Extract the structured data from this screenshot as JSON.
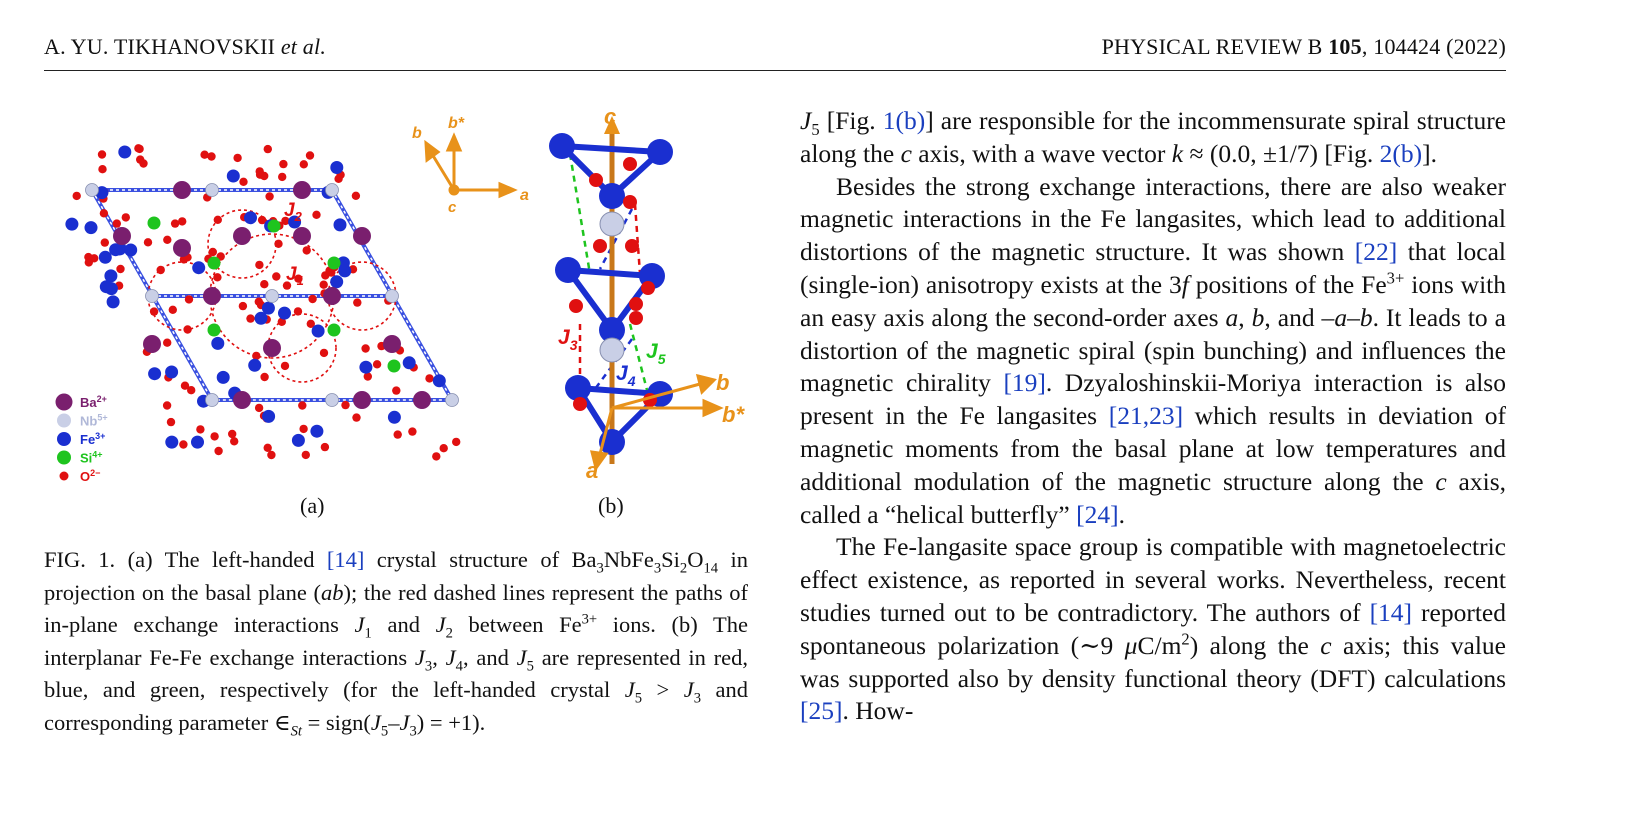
{
  "header": {
    "left_author": "A. YU. TIKHANOVSKII",
    "left_etal": "et al.",
    "right_journal": "PHYSICAL REVIEW B",
    "right_volume": "105",
    "right_rest": ", 104424 (2022)"
  },
  "figure": {
    "panel_a_label": "(a)",
    "panel_b_label": "(b)",
    "axes_a": {
      "a": "a",
      "b": "b",
      "bstar": "b*",
      "c": "c"
    },
    "legend": [
      {
        "label": "Ba",
        "charge": "2+",
        "color": "#7a1f6e"
      },
      {
        "label": "Nb",
        "charge": "5+",
        "color": "#c9cfe6"
      },
      {
        "label": "Fe",
        "charge": "3+",
        "color": "#1a2fd0"
      },
      {
        "label": "Si",
        "charge": "4+",
        "color": "#1ec41e"
      },
      {
        "label": "O",
        "charge": "2−",
        "color": "#e01010"
      }
    ],
    "j_labels": {
      "j1": "J",
      "j1n": "1",
      "j2": "J",
      "j2n": "2",
      "j3": "J",
      "j3n": "3",
      "j4": "J",
      "j4n": "4",
      "j5": "J",
      "j5n": "5"
    },
    "axes_b": {
      "c": "c",
      "a": "a",
      "b": "b",
      "bstar": "b*"
    }
  },
  "caption": {
    "p1": "FIG. 1. (a)  The  left-handed ",
    "cite14": "[14]",
    "p2": " crystal structure of ",
    "formula": "Ba3NbFe3Si2O14",
    "p3": " in projection on the basal plane (",
    "ab": "ab",
    "p4": "); the red dashed lines represent the paths of in-plane exchange interactions ",
    "p5": " and ",
    "p6": " between Fe",
    "p7": " ions. (b) The interplanar Fe-Fe exchange interactions ",
    "p8": ", ",
    "p9": ", and ",
    "p10": " are represented in red, blue, and green, respectively (for the left-handed crystal ",
    "p11": " > ",
    "p12": " and corresponding parameter ∈",
    "p13": " = sign(",
    "p14": "–",
    "p15": ") = +1)."
  },
  "body": {
    "para1": {
      "t1": " [Fig. ",
      "ref": "1(b)",
      "t2": "] are responsible for the incommensurate spiral structure along the ",
      "t3": " axis, with a wave vector ",
      "t4": " ≈ (0.0, ±1/7) [Fig. ",
      "ref2": "2(b)",
      "t5": "]."
    },
    "para2": {
      "t1": "Besides the strong exchange interactions, there are also weaker magnetic interactions in the Fe langasites, which lead to additional distortions of the magnetic structure. It was shown ",
      "ref22": "[22]",
      "t2": " that local (single-ion) anisotropy exists at the 3",
      "t3": " positions of the Fe",
      "t4": " ions with an easy axis along the second-order axes ",
      "t5": ", ",
      "t6": ", and –",
      "t7": "–",
      "t8": ". It leads to a distortion of the magnetic spiral (spin bunching) and influences the magnetic chirality ",
      "ref19": "[19]",
      "t9": ". Dzyaloshinskii-Moriya interaction is also present in the Fe langasites ",
      "ref21": "[21,23]",
      "t10": " which results in deviation of magnetic moments from the basal plane at low temperatures and additional modulation of the magnetic structure along the ",
      "t11": " axis, called a “helical butterfly” ",
      "ref24": "[24]",
      "t12": "."
    },
    "para3": {
      "t1": "The Fe-langasite space group is compatible with magnetoelectric effect existence, as reported in several works. Nevertheless, recent studies turned out to be contradictory. The authors of ",
      "ref14": "[14]",
      "t2": " reported spontaneous polarization (∼9 ",
      "t3": "C/m",
      "t4": ") along the ",
      "t5": " axis; this value was supported also by density functional theory (DFT) calculations ",
      "ref25": "[25]",
      "t6": ". How-"
    }
  }
}
